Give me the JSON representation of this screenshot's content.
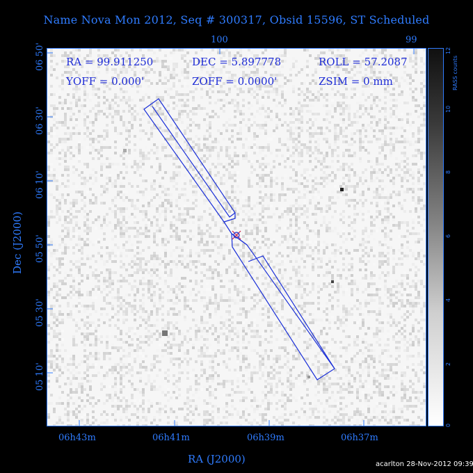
{
  "title": "Name Nova Mon 2012, Seq # 300317, Obsid 15596, ST Scheduled",
  "info": {
    "ra": "RA = 99.911250",
    "dec": "DEC = 5.897778",
    "roll": "ROLL = 57.2087",
    "yoff": "YOFF =    0.000'",
    "zoff": "ZOFF =   0.0000'",
    "zsim": "ZSIM = 0 mm"
  },
  "axes": {
    "xlabel": "RA (J2000)",
    "ylabel": "Dec (J2000)",
    "x_ticks_bottom": [
      "06h43m",
      "06h41m",
      "06h39m",
      "06h37m"
    ],
    "x_ticks_top": [
      "100",
      "99"
    ],
    "y_ticks": [
      "06 50'",
      "06 30'",
      "06 10'",
      "05 50'",
      "05 30'",
      "05 10'"
    ]
  },
  "colorbar": {
    "label": "RASS counts",
    "ticks": [
      "0",
      "2",
      "4",
      "6",
      "8",
      "10",
      "12"
    ]
  },
  "footer": "acarlton 28-Nov-2012 09:39",
  "colors": {
    "text": "#2f7cff",
    "info_text": "#1d2bd6",
    "overlay": "#1a2fd8",
    "target_marker": "#cc2244",
    "background": "#000000"
  }
}
